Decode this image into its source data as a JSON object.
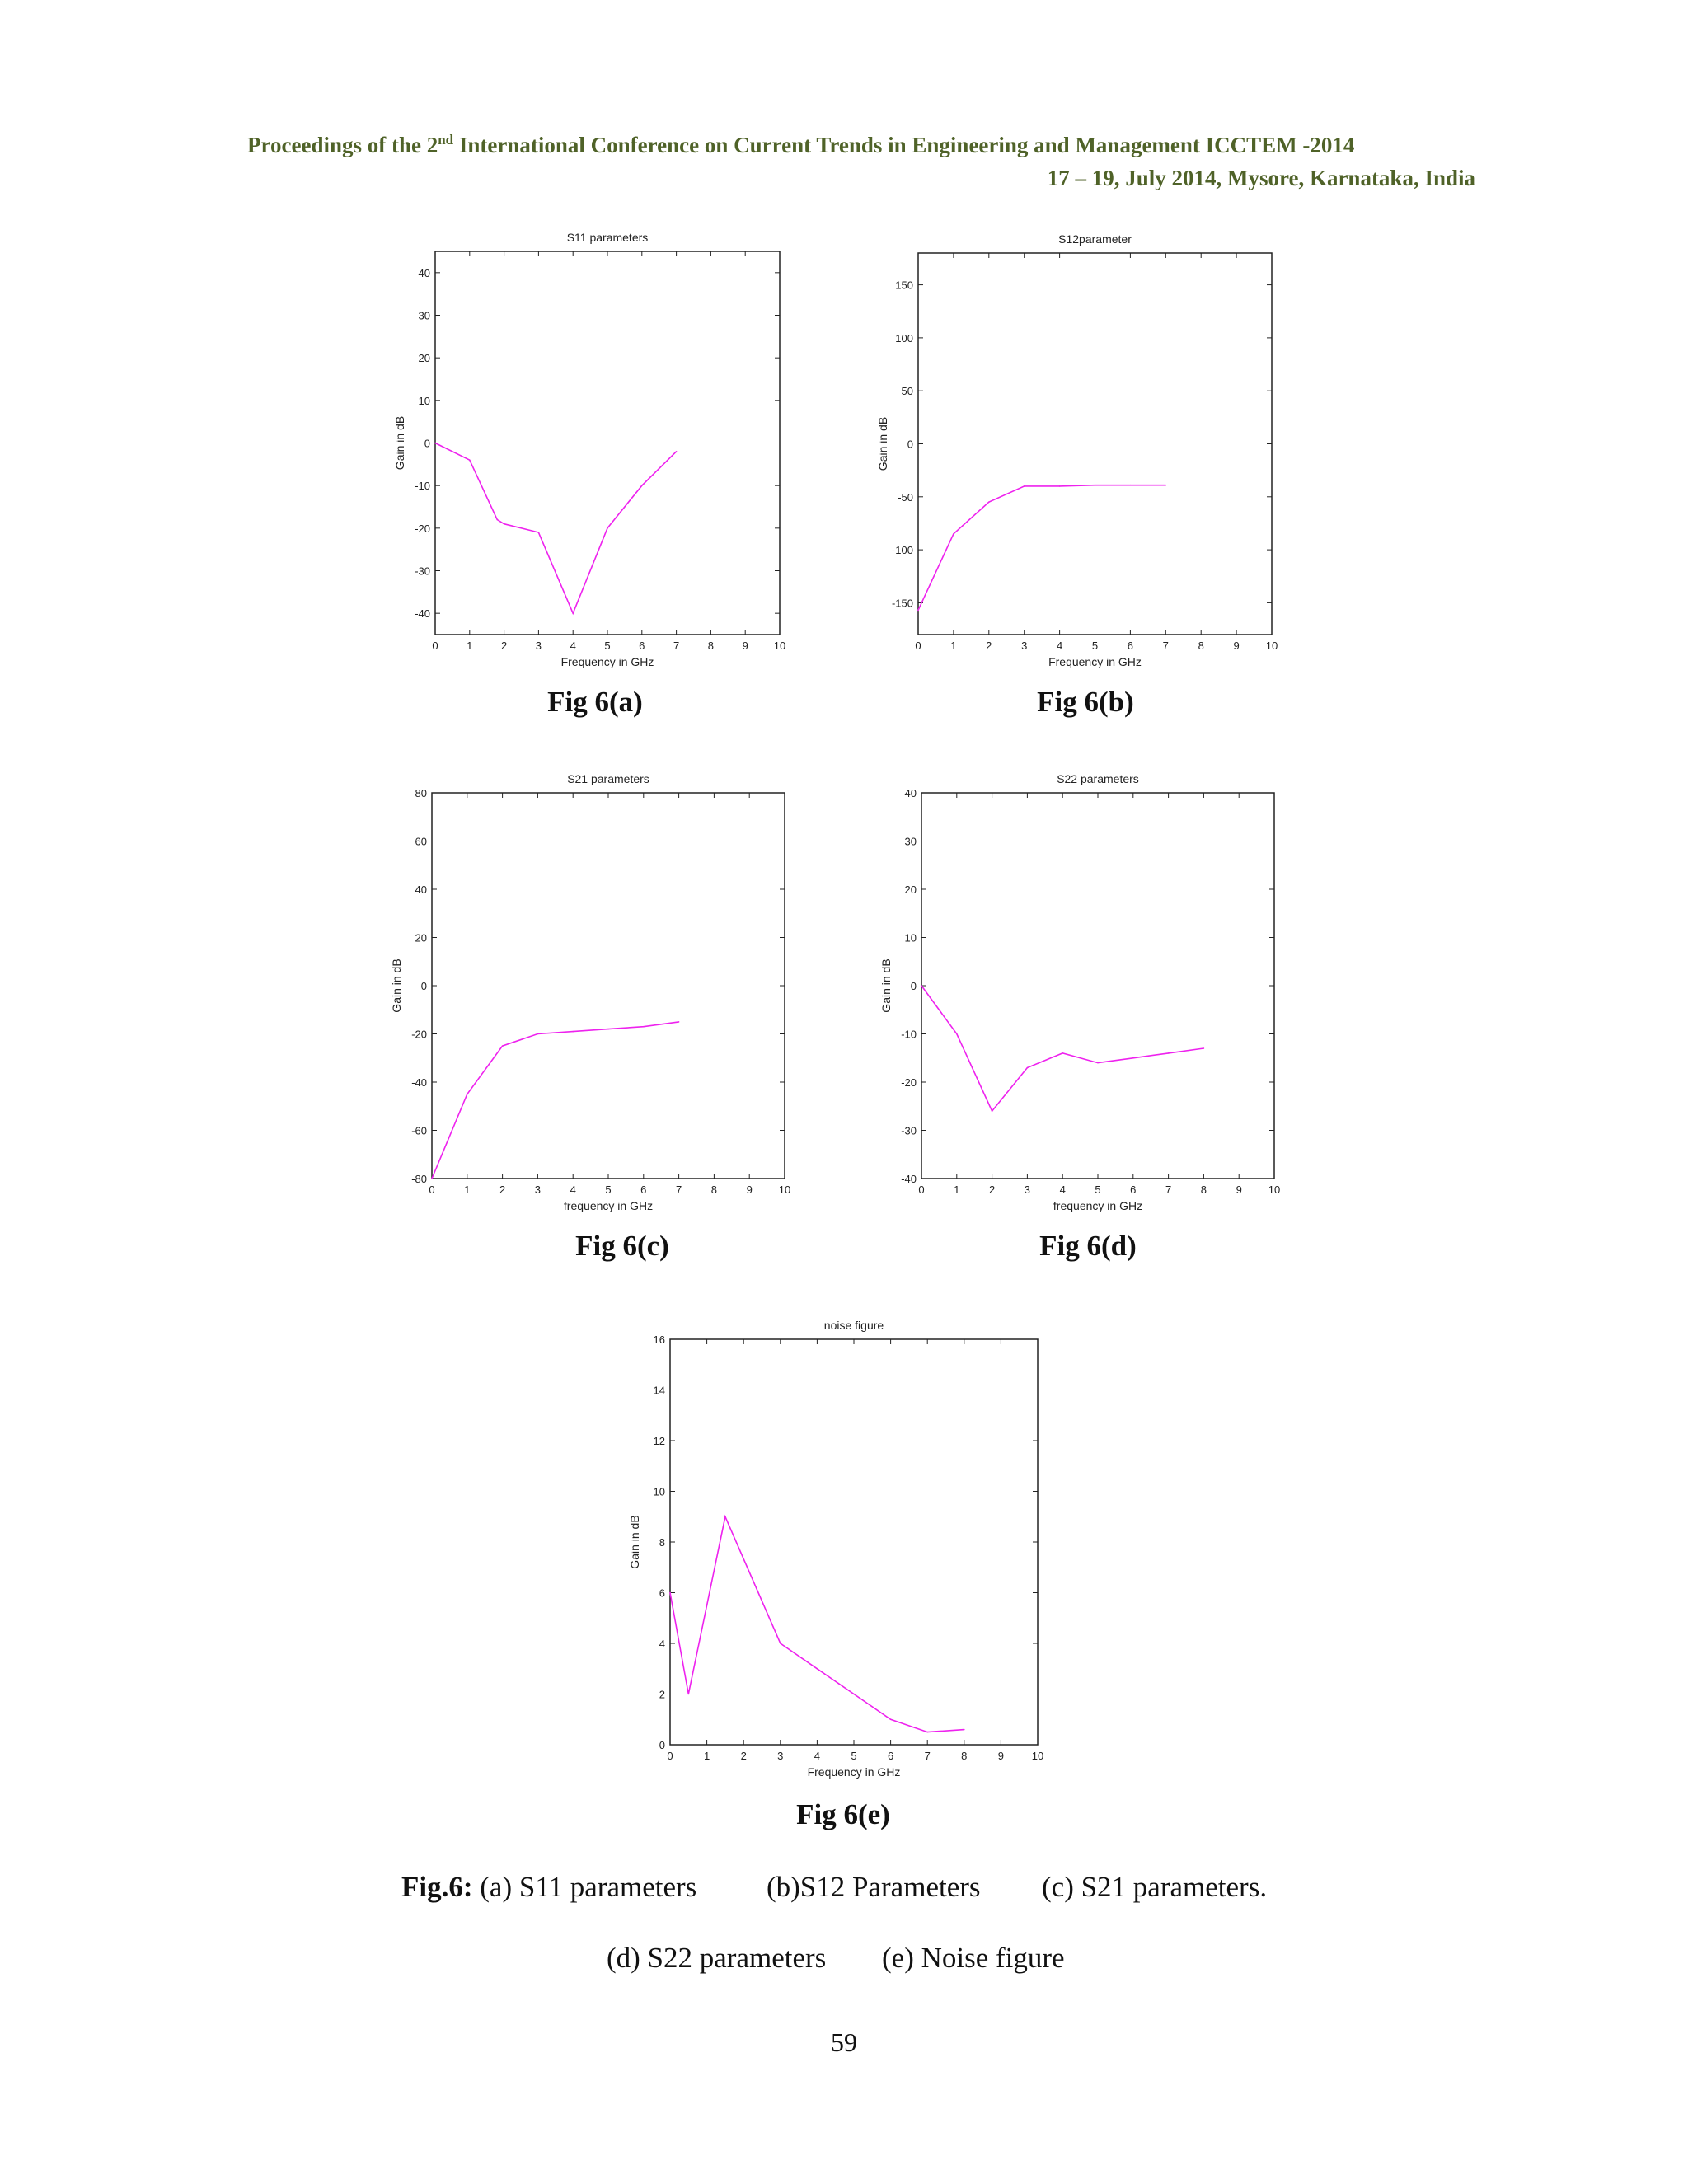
{
  "header": {
    "line1_prefix": "Proceedings of the 2",
    "line1_sup": "nd",
    "line1_suffix": " International Conference on Current Trends in Engineering and Management ICCTEM -2014",
    "line2": "17 – 19, July 2014, Mysore, Karnataka, India"
  },
  "figures": [
    {
      "label": "Fig 6(a)"
    },
    {
      "label": "Fig 6(b)"
    },
    {
      "label": "Fig 6(c)"
    },
    {
      "label": "Fig 6(d)"
    },
    {
      "label": "Fig 6(e)"
    }
  ],
  "chart_data": [
    {
      "type": "line",
      "title": "S11 parameters",
      "xlabel": "Frequency in GHz",
      "ylabel": "Gain in dB",
      "xlim": [
        0,
        10
      ],
      "ylim": [
        -45,
        45
      ],
      "xticks": [
        0,
        1,
        2,
        3,
        4,
        5,
        6,
        7,
        8,
        9,
        10
      ],
      "yticks": [
        -40,
        -30,
        -20,
        -10,
        0,
        10,
        20,
        30,
        40
      ],
      "x": [
        0,
        1,
        1.8,
        2,
        3,
        4,
        5,
        6,
        7
      ],
      "y": [
        0,
        -4,
        -18,
        -19,
        -21,
        -40,
        -20,
        -10,
        -2
      ],
      "color": "#ee22ee"
    },
    {
      "type": "line",
      "title": "S12parameter",
      "xlabel": "Frequency in GHz",
      "ylabel": "Gain in dB",
      "xlim": [
        0,
        10
      ],
      "ylim": [
        -180,
        180
      ],
      "xticks": [
        0,
        1,
        2,
        3,
        4,
        5,
        6,
        7,
        8,
        9,
        10
      ],
      "yticks": [
        -150,
        -100,
        -50,
        0,
        50,
        100,
        150
      ],
      "x": [
        0,
        1,
        2,
        3,
        4,
        5,
        6,
        7
      ],
      "y": [
        -157,
        -85,
        -55,
        -40,
        -40,
        -39,
        -39,
        -39
      ],
      "color": "#ee22ee"
    },
    {
      "type": "line",
      "title": "S21 parameters",
      "xlabel": "frequency in GHz",
      "ylabel": "Gain in dB",
      "xlim": [
        0,
        10
      ],
      "ylim": [
        -80,
        80
      ],
      "xticks": [
        0,
        1,
        2,
        3,
        4,
        5,
        6,
        7,
        8,
        9,
        10
      ],
      "yticks": [
        -80,
        -60,
        -40,
        -20,
        0,
        20,
        40,
        60,
        80
      ],
      "x": [
        0,
        1,
        2,
        3,
        4,
        5,
        6,
        7
      ],
      "y": [
        -80,
        -45,
        -25,
        -20,
        -19,
        -18,
        -17,
        -15
      ],
      "color": "#ee22ee"
    },
    {
      "type": "line",
      "title": "S22 parameters",
      "xlabel": "frequency in GHz",
      "ylabel": "Gain in dB",
      "xlim": [
        0,
        10
      ],
      "ylim": [
        -40,
        40
      ],
      "xticks": [
        0,
        1,
        2,
        3,
        4,
        5,
        6,
        7,
        8,
        9,
        10
      ],
      "yticks": [
        -40,
        -30,
        -20,
        -10,
        0,
        10,
        20,
        30,
        40
      ],
      "x": [
        0,
        1,
        2,
        3,
        4,
        5,
        6,
        7,
        8
      ],
      "y": [
        0,
        -10,
        -26,
        -17,
        -14,
        -16,
        -15,
        -14,
        -13
      ],
      "color": "#ee22ee"
    },
    {
      "type": "line",
      "title": "noise figure",
      "xlabel": "Frequency in GHz",
      "ylabel": "Gain in dB",
      "xlim": [
        0,
        10
      ],
      "ylim": [
        0,
        16
      ],
      "xticks": [
        0,
        1,
        2,
        3,
        4,
        5,
        6,
        7,
        8,
        9,
        10
      ],
      "yticks": [
        0,
        2,
        4,
        6,
        8,
        10,
        12,
        14,
        16
      ],
      "x": [
        0,
        0.5,
        1.5,
        3,
        4,
        5,
        6,
        7,
        8
      ],
      "y": [
        6,
        2,
        9,
        4,
        3,
        2,
        1,
        0.5,
        0.6
      ],
      "color": "#ee22ee"
    }
  ],
  "caption": {
    "fig_label": "Fig.6:",
    "a": " (a) S11 parameters",
    "b": "(b)S12 Parameters",
    "c": "(c) S21 parameters.",
    "d": "(d) S22 parameters",
    "e": "(e) Noise figure"
  },
  "page_number": "59"
}
